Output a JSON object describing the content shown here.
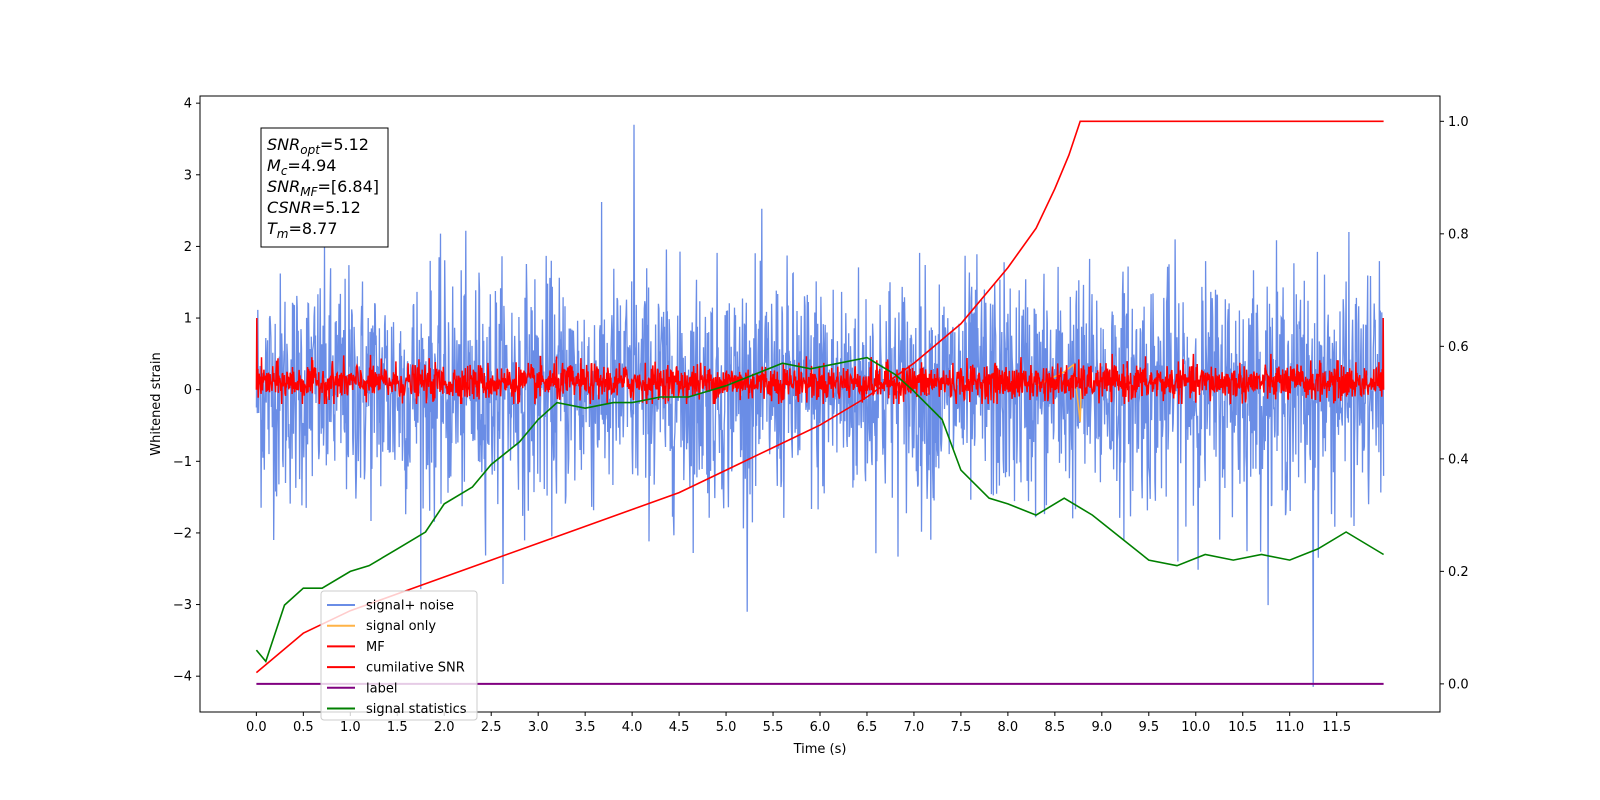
{
  "chart_data": {
    "type": "line",
    "xlabel": "Time (s)",
    "ylabel": "Whitened strain",
    "xlim": [
      -0.6,
      12.6
    ],
    "ylim": [
      -4.5,
      4.1
    ],
    "y2lim": [
      -0.05,
      1.045
    ],
    "x_ticks": [
      0.0,
      0.5,
      1.0,
      1.5,
      2.0,
      2.5,
      3.0,
      3.5,
      4.0,
      4.5,
      5.0,
      5.5,
      6.0,
      6.5,
      7.0,
      7.5,
      8.0,
      8.5,
      9.0,
      9.5,
      10.0,
      10.5,
      11.0,
      11.5
    ],
    "x_tick_labels": [
      "0.0",
      "0.5",
      "1.0",
      "1.5",
      "2.0",
      "2.5",
      "3.0",
      "3.5",
      "4.0",
      "4.5",
      "5.0",
      "5.5",
      "6.0",
      "6.5",
      "7.0",
      "7.5",
      "8.0",
      "8.5",
      "9.0",
      "9.5",
      "10.0",
      "10.5",
      "11.0",
      "11.5"
    ],
    "y_ticks": [
      -4,
      -3,
      -2,
      -1,
      0,
      1,
      2,
      3,
      4
    ],
    "y_tick_labels": [
      "−4",
      "−3",
      "−2",
      "−1",
      "0",
      "1",
      "2",
      "3",
      "4"
    ],
    "y2_ticks": [
      0.0,
      0.2,
      0.4,
      0.6,
      0.8,
      1.0
    ],
    "y2_tick_labels": [
      "0.0",
      "0.2",
      "0.4",
      "0.6",
      "0.8",
      "1.0"
    ],
    "grid": false,
    "legend_position": "lower-left",
    "series": [
      {
        "name": "signal+ noise",
        "color": "#6a8de6",
        "axis": "left",
        "note": "dense noise, approx. ±2 std 0.75 with spikes to 3.7 at 4.02 and -4.15 at 11.25",
        "x_range": [
          0.0,
          12.0
        ]
      },
      {
        "name": "signal only",
        "color": "#ffb347",
        "axis": "left",
        "x": [
          8.3,
          8.45,
          8.6,
          8.7,
          8.77,
          8.78
        ],
        "y": [
          0.05,
          0.15,
          0.25,
          0.35,
          -0.45,
          0.0
        ]
      },
      {
        "name": "MF",
        "color": "#ff0000",
        "axis": "left",
        "note": "noise band approx. -0.2 to 0.5",
        "x_range": [
          0.0,
          12.0
        ]
      },
      {
        "name": "cumilative SNR",
        "color": "#ff0000",
        "axis": "right",
        "x": [
          0.0,
          0.5,
          1.0,
          1.5,
          2.0,
          2.5,
          3.0,
          3.5,
          4.0,
          4.5,
          5.0,
          5.5,
          6.0,
          6.5,
          7.0,
          7.5,
          8.0,
          8.3,
          8.5,
          8.65,
          8.77,
          9.0,
          12.0
        ],
        "y": [
          0.02,
          0.09,
          0.13,
          0.16,
          0.19,
          0.22,
          0.25,
          0.28,
          0.31,
          0.34,
          0.38,
          0.42,
          0.46,
          0.51,
          0.57,
          0.64,
          0.74,
          0.81,
          0.88,
          0.94,
          1.0,
          1.0,
          1.0
        ]
      },
      {
        "name": "label",
        "color": "#800080",
        "axis": "right",
        "x": [
          0.0,
          12.0
        ],
        "y": [
          0.0,
          0.0
        ]
      },
      {
        "name": "signal statistics",
        "color": "#008000",
        "axis": "right",
        "x": [
          0.0,
          0.1,
          0.3,
          0.5,
          0.7,
          1.0,
          1.2,
          1.5,
          1.8,
          2.0,
          2.3,
          2.5,
          2.8,
          3.0,
          3.2,
          3.5,
          3.8,
          4.0,
          4.3,
          4.6,
          5.0,
          5.3,
          5.6,
          5.9,
          6.2,
          6.5,
          6.8,
          7.0,
          7.3,
          7.5,
          7.8,
          8.0,
          8.3,
          8.6,
          8.9,
          9.2,
          9.5,
          9.8,
          10.1,
          10.4,
          10.7,
          11.0,
          11.3,
          11.6,
          12.0
        ],
        "y": [
          0.06,
          0.04,
          0.14,
          0.17,
          0.17,
          0.2,
          0.21,
          0.24,
          0.27,
          0.32,
          0.35,
          0.39,
          0.43,
          0.47,
          0.5,
          0.49,
          0.5,
          0.5,
          0.51,
          0.51,
          0.53,
          0.55,
          0.57,
          0.56,
          0.57,
          0.58,
          0.55,
          0.52,
          0.47,
          0.38,
          0.33,
          0.32,
          0.3,
          0.33,
          0.3,
          0.26,
          0.22,
          0.21,
          0.23,
          0.22,
          0.23,
          0.22,
          0.24,
          0.27,
          0.23
        ]
      }
    ],
    "annotation_box": {
      "lines": [
        {
          "var": "SNR",
          "sub": "opt",
          "value": "=5.12"
        },
        {
          "var": "M",
          "sub": "c",
          "value": "=4.94"
        },
        {
          "var": "SNR",
          "sub": "MF",
          "value": "=[6.84]"
        },
        {
          "var": "CSNR",
          "sub": "",
          "value": "=5.12"
        },
        {
          "var": "T",
          "sub": "m",
          "value": "=8.77"
        }
      ]
    }
  }
}
